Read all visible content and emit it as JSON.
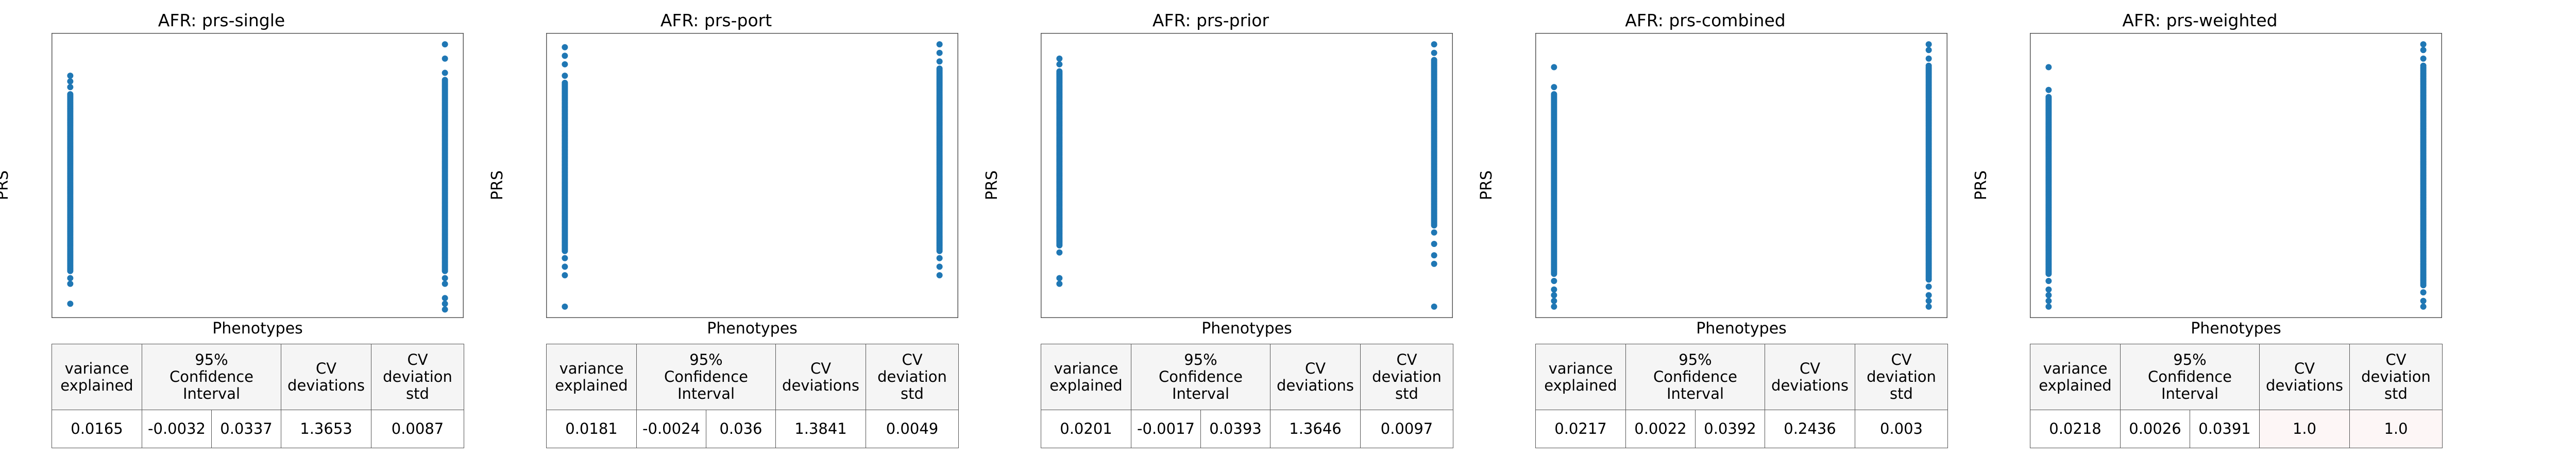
{
  "marker_color": "#1f77b4",
  "table_header": {
    "variance": [
      "variance",
      "explained"
    ],
    "confidence": [
      "95%",
      "Confidence",
      "Interval"
    ],
    "cv_dev": [
      "CV",
      "deviations"
    ],
    "cv_std": [
      "CV",
      "deviation",
      "std"
    ]
  },
  "chart_data": [
    {
      "type": "scatter",
      "title": "AFR: prs-single",
      "xlabel": "Phenotypes",
      "ylabel": "PRS",
      "grid": false,
      "xlim": [
        -0.05,
        1.05
      ],
      "ylim": [
        0,
        1
      ],
      "x_values": [
        0,
        1
      ],
      "series": [
        {
          "x": 0,
          "min": 0.04,
          "max": 0.85,
          "outliers": [
            0.05,
            0.12,
            0.14,
            0.81,
            0.83,
            0.85
          ]
        },
        {
          "x": 1,
          "min": 0.03,
          "max": 0.96,
          "outliers": [
            0.03,
            0.05,
            0.07,
            0.12,
            0.14,
            0.86,
            0.91,
            0.96
          ]
        }
      ],
      "stats": {
        "variance_explained": "0.0165",
        "ci_low": "-0.0032",
        "ci_high": "0.0337",
        "cv_deviations": "1.3653",
        "cv_deviation_std": "0.0087"
      }
    },
    {
      "type": "scatter",
      "title": "AFR: prs-port",
      "xlabel": "Phenotypes",
      "ylabel": "PRS",
      "grid": false,
      "xlim": [
        -0.05,
        1.05
      ],
      "ylim": [
        0,
        1
      ],
      "x_values": [
        0,
        1
      ],
      "series": [
        {
          "x": 0,
          "min": 0.04,
          "max": 0.95,
          "outliers": [
            0.04,
            0.15,
            0.18,
            0.21,
            0.85,
            0.89,
            0.92,
            0.95
          ]
        },
        {
          "x": 1,
          "min": 0.15,
          "max": 0.96,
          "outliers": [
            0.15,
            0.18,
            0.21,
            0.9,
            0.93,
            0.96
          ]
        }
      ],
      "stats": {
        "variance_explained": "0.0181",
        "ci_low": "-0.0024",
        "ci_high": "0.036",
        "cv_deviations": "1.3841",
        "cv_deviation_std": "0.0049"
      }
    },
    {
      "type": "scatter",
      "title": "AFR: prs-prior",
      "xlabel": "Phenotypes",
      "ylabel": "PRS",
      "grid": false,
      "xlim": [
        -0.05,
        1.05
      ],
      "ylim": [
        0,
        1
      ],
      "x_values": [
        0,
        1
      ],
      "series": [
        {
          "x": 0,
          "min": 0.12,
          "max": 0.91,
          "outliers": [
            0.12,
            0.14,
            0.23,
            0.89,
            0.91
          ]
        },
        {
          "x": 1,
          "min": 0.04,
          "max": 0.96,
          "outliers": [
            0.04,
            0.19,
            0.22,
            0.26,
            0.3,
            0.93,
            0.96
          ]
        }
      ],
      "stats": {
        "variance_explained": "0.0201",
        "ci_low": "-0.0017",
        "ci_high": "0.0393",
        "cv_deviations": "1.3646",
        "cv_deviation_std": "0.0097"
      }
    },
    {
      "type": "scatter",
      "title": "AFR: prs-combined",
      "xlabel": "Phenotypes",
      "ylabel": "PRS",
      "grid": false,
      "xlim": [
        -0.05,
        1.05
      ],
      "ylim": [
        0,
        1
      ],
      "x_values": [
        0,
        1
      ],
      "series": [
        {
          "x": 0,
          "min": 0.04,
          "max": 0.88,
          "outliers": [
            0.04,
            0.06,
            0.08,
            0.1,
            0.13,
            0.81,
            0.88
          ]
        },
        {
          "x": 1,
          "min": 0.04,
          "max": 0.96,
          "outliers": [
            0.04,
            0.06,
            0.08,
            0.11,
            0.91,
            0.94,
            0.96
          ]
        }
      ],
      "stats": {
        "variance_explained": "0.0217",
        "ci_low": "0.0022",
        "ci_high": "0.0392",
        "cv_deviations": "0.2436",
        "cv_deviation_std": "0.003"
      }
    },
    {
      "type": "scatter",
      "title": "AFR: prs-weighted",
      "xlabel": "Phenotypes",
      "ylabel": "PRS",
      "grid": false,
      "xlim": [
        -0.05,
        1.05
      ],
      "ylim": [
        0,
        1
      ],
      "x_values": [
        0,
        1
      ],
      "series": [
        {
          "x": 0,
          "min": 0.04,
          "max": 0.88,
          "outliers": [
            0.04,
            0.06,
            0.08,
            0.1,
            0.13,
            0.8,
            0.88
          ]
        },
        {
          "x": 1,
          "min": 0.04,
          "max": 0.96,
          "outliers": [
            0.04,
            0.06,
            0.09,
            0.91,
            0.94,
            0.96
          ]
        }
      ],
      "stats": {
        "variance_explained": "0.0218",
        "ci_low": "0.0026",
        "ci_high": "0.0391",
        "cv_deviations": "1.0",
        "cv_deviation_std": "1.0"
      }
    }
  ]
}
